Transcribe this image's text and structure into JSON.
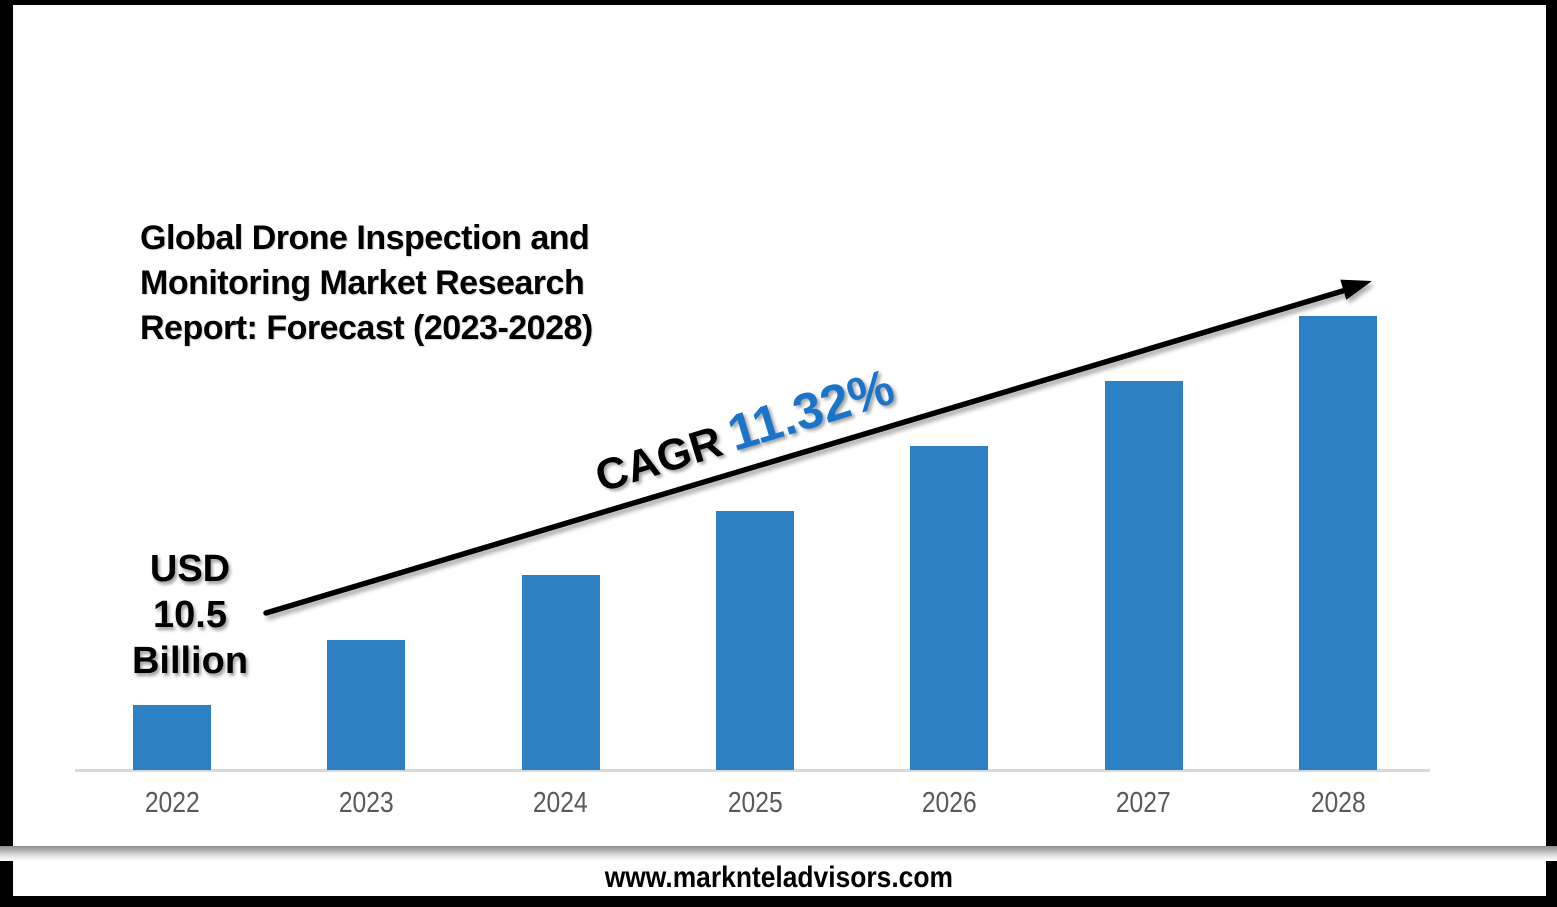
{
  "title": {
    "text": "Global Drone Inspection and Monitoring Market Research Report: Forecast (2023-2028)"
  },
  "annotations": {
    "usd_label": {
      "text": "USD\n10.5\nBillion"
    },
    "cagr": {
      "prefix": "CAGR",
      "value": "11.32%"
    }
  },
  "footer": {
    "website": "www.marknteladvisors.com"
  },
  "theme": {
    "bar_color": "#2E80C4",
    "cagr_value_color": "#1C74C8",
    "tick_color": "#595959",
    "axis_line_color": "#D9D9D9",
    "frame_color": "#000000",
    "arrow_color": "#000000",
    "title_color": "#000000",
    "footer_text_color": "#000000"
  },
  "chart_data": {
    "type": "bar",
    "title": "Global Drone Inspection and Monitoring Market Research Report: Forecast (2023-2028)",
    "categories": [
      "2022",
      "2023",
      "2024",
      "2025",
      "2026",
      "2027",
      "2028"
    ],
    "values_relative": [
      1,
      2,
      3,
      4,
      5,
      6,
      7
    ],
    "value_axis_note": "stylized chart - no numeric y-axis shown; bar heights rise linearly year over year",
    "known_values": {
      "2022": "USD 10.5 Billion"
    },
    "cagr_2023_2028": "11.32%",
    "xlabel": "",
    "ylabel": "",
    "grid": false,
    "legend": false,
    "trend_arrow": true
  }
}
